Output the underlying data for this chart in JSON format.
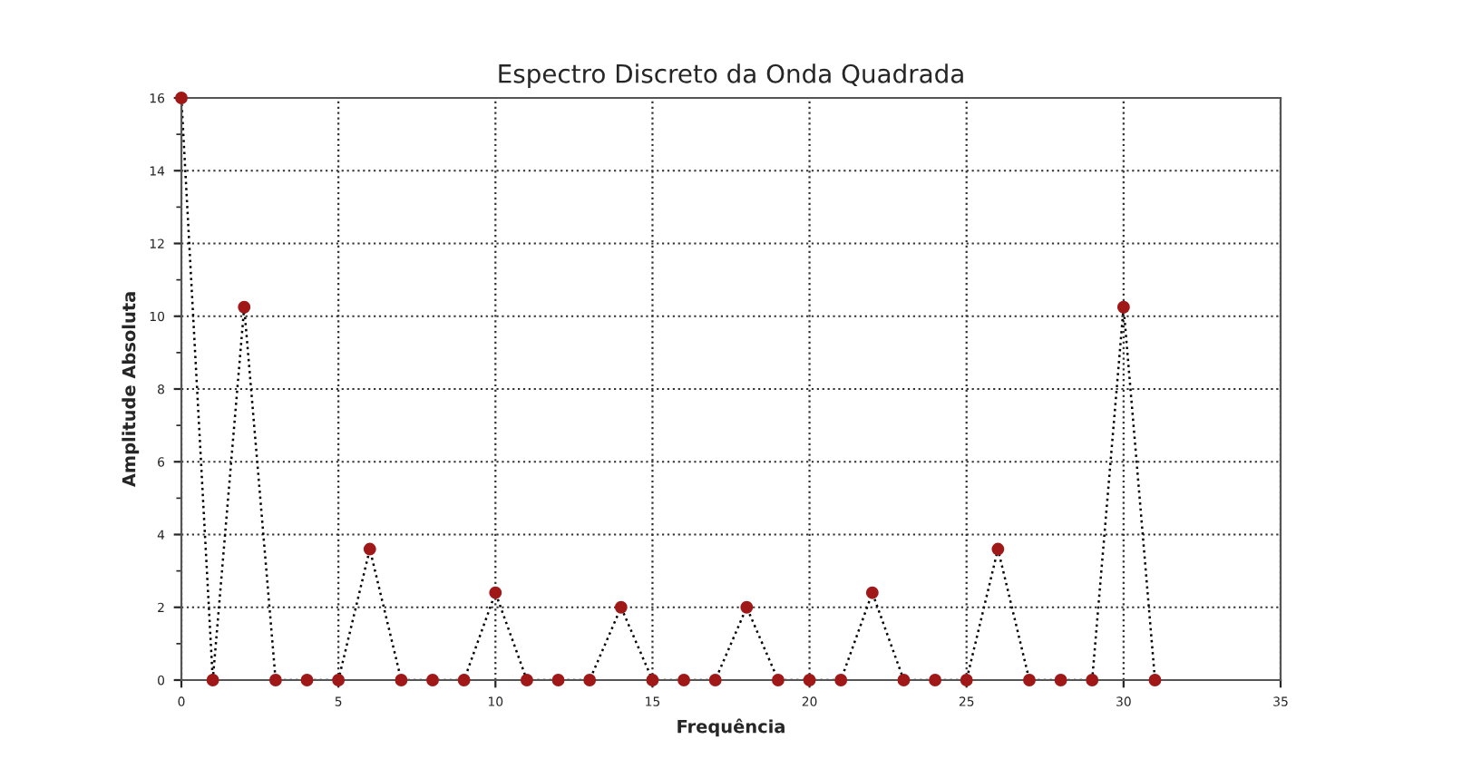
{
  "chart_data": {
    "type": "line",
    "title": "Espectro Discreto da Onda Quadrada",
    "xlabel": "Frequência",
    "ylabel": "Amplitude Absoluta",
    "x": [
      0,
      1,
      2,
      3,
      4,
      5,
      6,
      7,
      8,
      9,
      10,
      11,
      12,
      13,
      14,
      15,
      16,
      17,
      18,
      19,
      20,
      21,
      22,
      23,
      24,
      25,
      26,
      27,
      28,
      29,
      30,
      31
    ],
    "series": [
      {
        "color": "#000000",
        "values": [
          16,
          0,
          10.25,
          0,
          0,
          0,
          3.6,
          0,
          0,
          0,
          2.4,
          0,
          0,
          0,
          2.0,
          0,
          0,
          0,
          2.0,
          0,
          0,
          0,
          2.4,
          0,
          0,
          0,
          3.6,
          0,
          0,
          0,
          10.25,
          0
        ],
        "colors": [
          "#a01818",
          "#a01818",
          "#a01818",
          "#a01818",
          "#a01818",
          "#a01818",
          "#a01818",
          "#a01818",
          "#a01818",
          "#a01818",
          "#a01818",
          "#a01818",
          "#a01818",
          "#a01818",
          "#a01818",
          "#a01818",
          "#a01818",
          "#a01818",
          "#a01818",
          "#a01818",
          "#a01818",
          "#a01818",
          "#a01818",
          "#a01818",
          "#a01818",
          "#a01818",
          "#a01818",
          "#a01818",
          "#a01818",
          "#a01818",
          "#a01818",
          "#a01818"
        ]
      }
    ],
    "xlim": [
      0,
      35
    ],
    "xticks": [
      0,
      5,
      10,
      15,
      20,
      25,
      30,
      35
    ],
    "ylim": [
      0,
      16
    ],
    "yticks": [
      0,
      2,
      4,
      6,
      8,
      10,
      12,
      14,
      16
    ],
    "grid": true,
    "line_style": "dotted",
    "marker": "circle"
  }
}
